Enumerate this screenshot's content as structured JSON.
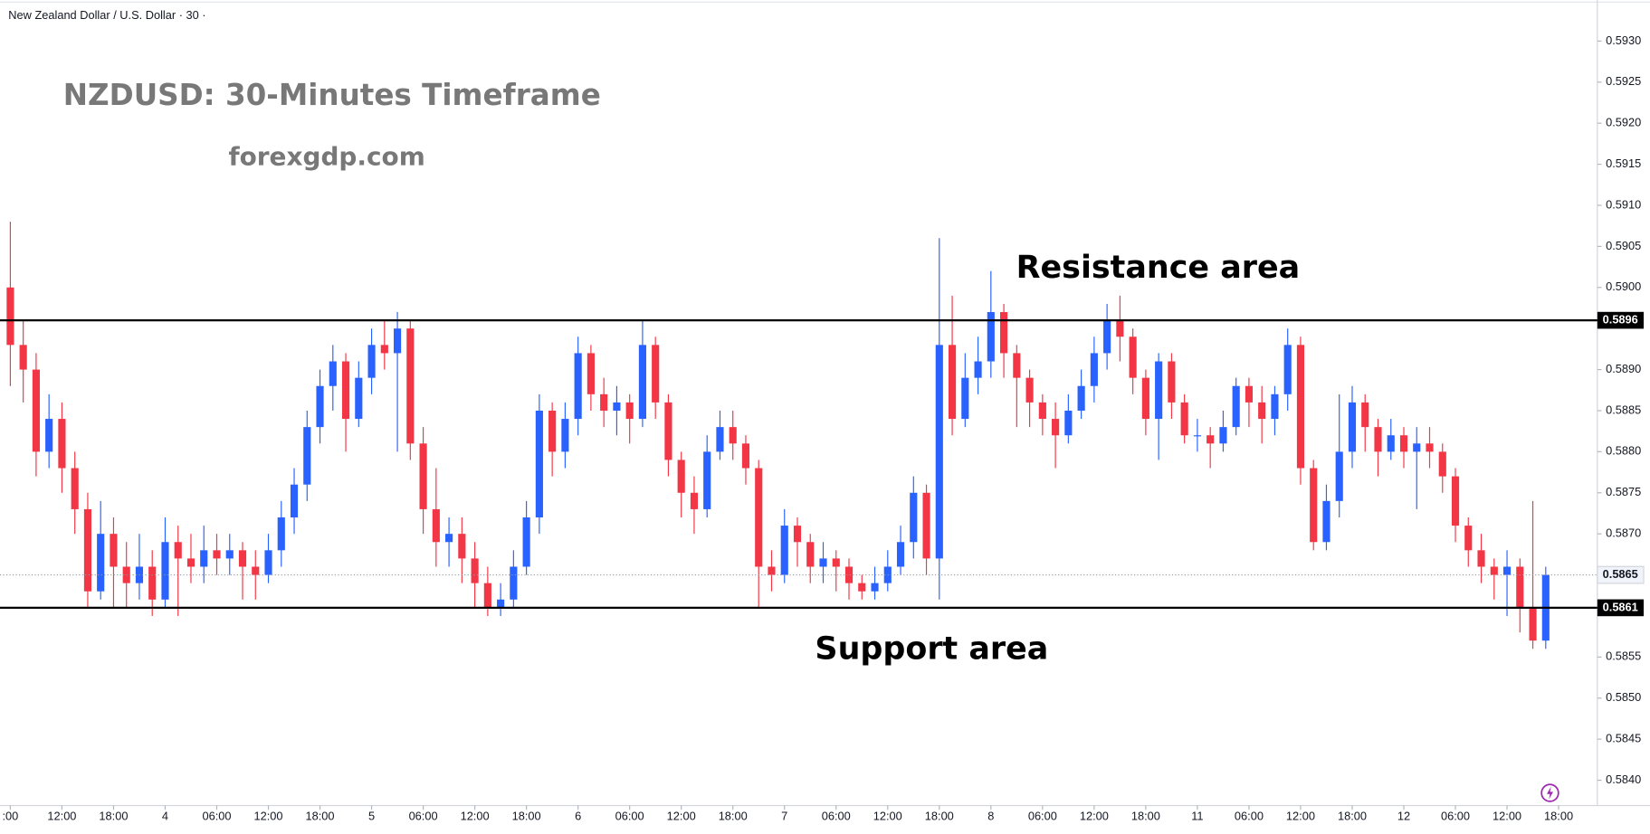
{
  "chart_data": {
    "type": "candlestick",
    "symbol_title": "New Zealand Dollar / U.S. Dollar · 30 ·",
    "annotations": [
      "NZDUSD: 30-Minutes Timeframe",
      "forexgdp.com",
      "Resistance area",
      "Support area"
    ],
    "up_color": "#2962ff",
    "down_color": "#f23645",
    "open": [
      0.59,
      0.5893,
      0.589,
      0.588,
      0.5884,
      0.5878,
      0.5873,
      0.5863,
      0.587,
      0.5866,
      0.5864,
      0.5866,
      0.5862,
      0.5869,
      0.5867,
      0.5866,
      0.5868,
      0.5867,
      0.5868,
      0.5866,
      0.5865,
      0.5868,
      0.5872,
      0.5876,
      0.5883,
      0.5888,
      0.5891,
      0.5884,
      0.5889,
      0.5893,
      0.5892,
      0.5895,
      0.5881,
      0.5873,
      0.5869,
      0.587,
      0.5867,
      0.5864,
      0.5861,
      0.5862,
      0.5866,
      0.5872,
      0.5885,
      0.588,
      0.5884,
      0.5892,
      0.5887,
      0.5885,
      0.5886,
      0.5884,
      0.5893,
      0.5886,
      0.5879,
      0.5875,
      0.5873,
      0.588,
      0.5883,
      0.5881,
      0.5878,
      0.5866,
      0.5865,
      0.5871,
      0.5869,
      0.5866,
      0.5867,
      0.5866,
      0.5864,
      0.5863,
      0.5864,
      0.5866,
      0.5869,
      0.5875,
      0.5867,
      0.5893,
      0.5884,
      0.5889,
      0.5891,
      0.5897,
      0.5892,
      0.5889,
      0.5886,
      0.5884,
      0.5882,
      0.5885,
      0.5888,
      0.5892,
      0.5896,
      0.5894,
      0.5889,
      0.5884,
      0.5891,
      0.5886,
      0.5882,
      0.5882,
      0.5881,
      0.5883,
      0.5888,
      0.5886,
      0.5884,
      0.5887,
      0.5893,
      0.5878,
      0.5869,
      0.5874,
      0.588,
      0.5886,
      0.5883,
      0.588,
      0.5882,
      0.588,
      0.5881,
      0.588,
      0.5877,
      0.5871,
      0.5868,
      0.5866,
      0.5865,
      0.5866,
      0.5861,
      0.5857
    ],
    "high": [
      0.5908,
      0.5896,
      0.5892,
      0.5887,
      0.5886,
      0.588,
      0.5875,
      0.5874,
      0.5872,
      0.5869,
      0.587,
      0.5868,
      0.5872,
      0.5871,
      0.587,
      0.5871,
      0.587,
      0.587,
      0.5869,
      0.5868,
      0.587,
      0.5874,
      0.5878,
      0.5885,
      0.589,
      0.5893,
      0.5892,
      0.5891,
      0.5895,
      0.5896,
      0.5897,
      0.5896,
      0.5883,
      0.5878,
      0.5872,
      0.5872,
      0.5869,
      0.5866,
      0.5864,
      0.5868,
      0.5874,
      0.5887,
      0.5886,
      0.5886,
      0.5894,
      0.5893,
      0.5889,
      0.5888,
      0.5887,
      0.5896,
      0.5894,
      0.5887,
      0.588,
      0.5877,
      0.5882,
      0.5885,
      0.5885,
      0.5882,
      0.5879,
      0.5868,
      0.5873,
      0.5872,
      0.587,
      0.5869,
      0.5868,
      0.5867,
      0.5865,
      0.5866,
      0.5868,
      0.5871,
      0.5877,
      0.5876,
      0.5906,
      0.5899,
      0.5892,
      0.5894,
      0.5902,
      0.5898,
      0.5893,
      0.589,
      0.5887,
      0.5886,
      0.5887,
      0.589,
      0.5894,
      0.5898,
      0.5899,
      0.5895,
      0.589,
      0.5892,
      0.5892,
      0.5887,
      0.5884,
      0.5883,
      0.5885,
      0.5889,
      0.5889,
      0.5888,
      0.5888,
      0.5895,
      0.5894,
      0.5879,
      0.5876,
      0.5887,
      0.5888,
      0.5887,
      0.5884,
      0.5884,
      0.5883,
      0.5883,
      0.5883,
      0.5881,
      0.5878,
      0.5872,
      0.587,
      0.5867,
      0.5868,
      0.5867,
      0.5874,
      0.5866
    ],
    "low": [
      0.5888,
      0.5886,
      0.5877,
      0.5878,
      0.5875,
      0.587,
      0.5861,
      0.5862,
      0.5861,
      0.5861,
      0.5862,
      0.586,
      0.5861,
      0.586,
      0.5864,
      0.5864,
      0.5865,
      0.5865,
      0.5862,
      0.5862,
      0.5864,
      0.5866,
      0.587,
      0.5874,
      0.5881,
      0.5885,
      0.588,
      0.5883,
      0.5887,
      0.589,
      0.588,
      0.5879,
      0.587,
      0.5866,
      0.5866,
      0.5864,
      0.5861,
      0.586,
      0.586,
      0.5861,
      0.5865,
      0.587,
      0.5877,
      0.5878,
      0.5882,
      0.5885,
      0.5883,
      0.5882,
      0.5881,
      0.5883,
      0.5884,
      0.5877,
      0.5872,
      0.587,
      0.5872,
      0.5879,
      0.5879,
      0.5876,
      0.5861,
      0.5863,
      0.5864,
      0.5866,
      0.5864,
      0.5864,
      0.5863,
      0.5862,
      0.5862,
      0.5862,
      0.5863,
      0.5865,
      0.5867,
      0.5865,
      0.5862,
      0.5882,
      0.5883,
      0.5887,
      0.5889,
      0.5889,
      0.5883,
      0.5883,
      0.5882,
      0.5878,
      0.5881,
      0.5884,
      0.5886,
      0.589,
      0.5891,
      0.5887,
      0.5882,
      0.5879,
      0.5884,
      0.5881,
      0.588,
      0.5878,
      0.588,
      0.5882,
      0.5883,
      0.5881,
      0.5882,
      0.5885,
      0.5876,
      0.5868,
      0.5868,
      0.5872,
      0.5878,
      0.588,
      0.5877,
      0.5879,
      0.5878,
      0.5873,
      0.5878,
      0.5875,
      0.5869,
      0.5866,
      0.5864,
      0.5862,
      0.586,
      0.5858,
      0.5856,
      0.5856
    ],
    "close": [
      0.5893,
      0.589,
      0.588,
      0.5884,
      0.5878,
      0.5873,
      0.5863,
      0.587,
      0.5866,
      0.5864,
      0.5866,
      0.5862,
      0.5869,
      0.5867,
      0.5866,
      0.5868,
      0.5867,
      0.5868,
      0.5866,
      0.5865,
      0.5868,
      0.5872,
      0.5876,
      0.5883,
      0.5888,
      0.5891,
      0.5884,
      0.5889,
      0.5893,
      0.5892,
      0.5895,
      0.5881,
      0.5873,
      0.5869,
      0.587,
      0.5867,
      0.5864,
      0.5861,
      0.5862,
      0.5866,
      0.5872,
      0.5885,
      0.588,
      0.5884,
      0.5892,
      0.5887,
      0.5885,
      0.5886,
      0.5884,
      0.5893,
      0.5886,
      0.5879,
      0.5875,
      0.5873,
      0.588,
      0.5883,
      0.5881,
      0.5878,
      0.5866,
      0.5865,
      0.5871,
      0.5869,
      0.5866,
      0.5867,
      0.5866,
      0.5864,
      0.5863,
      0.5864,
      0.5866,
      0.5869,
      0.5875,
      0.5867,
      0.5893,
      0.5884,
      0.5889,
      0.5891,
      0.5897,
      0.5892,
      0.5889,
      0.5886,
      0.5884,
      0.5882,
      0.5885,
      0.5888,
      0.5892,
      0.5896,
      0.5894,
      0.5889,
      0.5884,
      0.5891,
      0.5886,
      0.5882,
      0.5882,
      0.5881,
      0.5883,
      0.5888,
      0.5886,
      0.5884,
      0.5887,
      0.5893,
      0.5878,
      0.5869,
      0.5874,
      0.588,
      0.5886,
      0.5883,
      0.588,
      0.5882,
      0.588,
      0.5881,
      0.588,
      0.5877,
      0.5871,
      0.5868,
      0.5866,
      0.5865,
      0.5866,
      0.5861,
      0.5857,
      0.5865
    ],
    "xlim": [
      -0.8,
      123
    ],
    "xticks": [
      {
        "value": 0,
        "label": ":00"
      },
      {
        "value": 4,
        "label": "12:00"
      },
      {
        "value": 8,
        "label": "18:00"
      },
      {
        "value": 12,
        "label": "4"
      },
      {
        "value": 16,
        "label": "06:00"
      },
      {
        "value": 20,
        "label": "12:00"
      },
      {
        "value": 24,
        "label": "18:00"
      },
      {
        "value": 28,
        "label": "5"
      },
      {
        "value": 32,
        "label": "06:00"
      },
      {
        "value": 36,
        "label": "12:00"
      },
      {
        "value": 40,
        "label": "18:00"
      },
      {
        "value": 44,
        "label": "6"
      },
      {
        "value": 48,
        "label": "06:00"
      },
      {
        "value": 52,
        "label": "12:00"
      },
      {
        "value": 56,
        "label": "18:00"
      },
      {
        "value": 60,
        "label": "7"
      },
      {
        "value": 64,
        "label": "06:00"
      },
      {
        "value": 68,
        "label": "12:00"
      },
      {
        "value": 72,
        "label": "18:00"
      },
      {
        "value": 76,
        "label": "8"
      },
      {
        "value": 80,
        "label": "06:00"
      },
      {
        "value": 84,
        "label": "12:00"
      },
      {
        "value": 88,
        "label": "18:00"
      },
      {
        "value": 92,
        "label": "11"
      },
      {
        "value": 96,
        "label": "06:00"
      },
      {
        "value": 100,
        "label": "12:00"
      },
      {
        "value": 104,
        "label": "18:00"
      },
      {
        "value": 108,
        "label": "12"
      },
      {
        "value": 112,
        "label": "06:00"
      },
      {
        "value": 116,
        "label": "12:00"
      },
      {
        "value": 120,
        "label": "18:00"
      }
    ],
    "ylim": [
      0.58373,
      0.5935
    ],
    "yticks": [
      {
        "value": 0.593,
        "label": "0.5930"
      },
      {
        "value": 0.5925,
        "label": "0.5925"
      },
      {
        "value": 0.592,
        "label": "0.5920"
      },
      {
        "value": 0.5915,
        "label": "0.5915"
      },
      {
        "value": 0.591,
        "label": "0.5910"
      },
      {
        "value": 0.5905,
        "label": "0.5905"
      },
      {
        "value": 0.59,
        "label": "0.5900"
      },
      {
        "value": 0.589,
        "label": "0.5890"
      },
      {
        "value": 0.5885,
        "label": "0.5885"
      },
      {
        "value": 0.588,
        "label": "0.5880"
      },
      {
        "value": 0.5875,
        "label": "0.5875"
      },
      {
        "value": 0.587,
        "label": "0.5870"
      },
      {
        "value": 0.5855,
        "label": "0.5855"
      },
      {
        "value": 0.585,
        "label": "0.5850"
      },
      {
        "value": 0.5845,
        "label": "0.5845"
      },
      {
        "value": 0.584,
        "label": "0.5840"
      }
    ],
    "hlines": [
      {
        "value": 0.5896,
        "label": "0.5896"
      },
      {
        "value": 0.5861,
        "label": "0.5861"
      }
    ],
    "last_price": {
      "value": 0.5865,
      "label": "0.5865"
    }
  }
}
